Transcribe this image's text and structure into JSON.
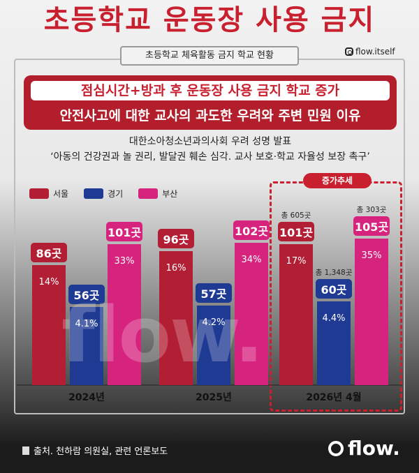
{
  "title": "초등학교 운동장 사용 금지",
  "subtitle": "초등학교 체육활동 금지 학교 현황",
  "handle": "flow.itself",
  "banner": {
    "headline1": "점심시간+방과 후 운동장 사용 금지 학교 증가",
    "headline2": "안전사고에 대한 교사의 과도한 우려와 주변 민원 이유"
  },
  "notes": {
    "line1": "대한소아청소년과의사회 우려 성명 발표",
    "line2": "‘아동의 건강권과 놀 권리, 발달권 훼손 심각. 교사 보호·학교 자율성 보장 촉구’"
  },
  "trend_label": "증가추세",
  "watermark": "flow.",
  "footer": {
    "source": "출처. 천하람 의원실, 관련 언론보도",
    "brand": "flow."
  },
  "colors": {
    "서울": "#b21e34",
    "경기": "#1f3a93",
    "부산": "#d6247e",
    "accent": "#c8202e"
  },
  "chart_data": {
    "type": "bar",
    "categories": [
      "2024년",
      "2025년",
      "2026년 4월"
    ],
    "series": [
      {
        "name": "서울",
        "values": [
          86,
          96,
          101
        ],
        "labels": [
          "86곳",
          "96곳",
          "101곳"
        ],
        "pct": [
          "14%",
          "16%",
          "17%"
        ]
      },
      {
        "name": "경기",
        "values": [
          56,
          57,
          60
        ],
        "labels": [
          "56곳",
          "57곳",
          "60곳"
        ],
        "pct": [
          "4.1%",
          "4.2%",
          "4.4%"
        ]
      },
      {
        "name": "부산",
        "values": [
          101,
          102,
          105
        ],
        "labels": [
          "101곳",
          "102곳",
          "105곳"
        ],
        "pct": [
          "33%",
          "34%",
          "35%"
        ]
      }
    ],
    "totals_2026": {
      "서울": "총 605곳",
      "경기": "총 1,348곳",
      "부산": "총 303곳"
    },
    "ylim": [
      0,
      120
    ],
    "legend_position": "top-left",
    "grid": false
  }
}
